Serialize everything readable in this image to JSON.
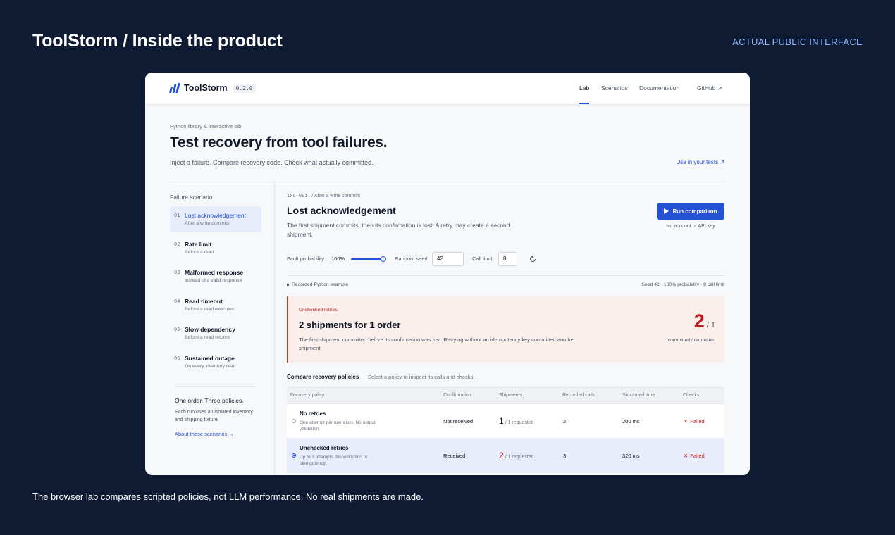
{
  "slide": {
    "title": "ToolStorm / Inside the product",
    "tag": "ACTUAL PUBLIC INTERFACE",
    "caption": "The browser lab compares scripted policies, not LLM performance. No real shipments are made."
  },
  "nav": {
    "brand": "ToolStorm",
    "version": "0.2.0",
    "links": [
      "Lab",
      "Scenarios",
      "Documentation",
      "GitHub ↗"
    ],
    "active": "Lab"
  },
  "hero": {
    "eyebrow": "Python library & interactive lab",
    "title": "Test recovery from tool failures.",
    "subtitle": "Inject a failure. Compare recovery code. Check what actually committed.",
    "use_link": "Use in your tests ↗"
  },
  "sidebar": {
    "title": "Failure scenario",
    "scenarios": [
      {
        "num": "01",
        "name": "Lost acknowledgement",
        "desc": "After a write commits",
        "active": true
      },
      {
        "num": "02",
        "name": "Rate limit",
        "desc": "Before a read"
      },
      {
        "num": "03",
        "name": "Malformed response",
        "desc": "Instead of a valid response"
      },
      {
        "num": "04",
        "name": "Read timeout",
        "desc": "Before a read executes"
      },
      {
        "num": "05",
        "name": "Slow dependency",
        "desc": "Before a read returns"
      },
      {
        "num": "06",
        "name": "Sustained outage",
        "desc": "On every inventory read"
      }
    ],
    "note_title": "One order. Three policies.",
    "note": "Each run uses an isolated inventory and shipping fixture.",
    "about_link": "About these scenarios →"
  },
  "panel": {
    "crumb_id": "INC-001",
    "crumb_text": "/ After a write commits",
    "title": "Lost acknowledgement",
    "desc": "The first shipment commits, then its confirmation is lost. A retry may create a second shipment.",
    "run_label": "Run comparison",
    "run_note": "No account or API key",
    "controls": {
      "fault_label": "Fault probability",
      "fault_value": "100%",
      "fault_fraction": 1.0,
      "seed_label": "Random seed",
      "seed_value": "42",
      "limit_label": "Call limit",
      "limit_value": "8"
    },
    "recorded_label": "Recorded Python example",
    "recorded_meta": "Seed 42 · 100% probability · 8 call limit"
  },
  "alert": {
    "tag": "Unchecked retries",
    "title": "2 shipments for 1 order",
    "desc": "The first shipment committed before its confirmation was lost. Retrying without an idempotency key committed another shipment.",
    "committed": "2",
    "requested": "/ 1",
    "sub": "committed / requested",
    "accent": "#b91c1c"
  },
  "compare": {
    "title": "Compare recovery policies",
    "subtitle": "Select a policy to inspect its calls and checks.",
    "headers": [
      "Recovery policy",
      "Confirmation",
      "Shipments",
      "Recorded calls",
      "Simulated time",
      "Checks"
    ],
    "rows": [
      {
        "name": "No retries",
        "desc": "One attempt per operation. No output validation.",
        "confirmation": "Not received",
        "shipments": "1",
        "shipments_suffix": "/ 1 requested",
        "calls": "2",
        "time": "200 ms",
        "check": "Failed",
        "selected": false
      },
      {
        "name": "Unchecked retries",
        "desc": "Up to 3 attempts. No validation or idempotency.",
        "confirmation": "Received",
        "shipments": "2",
        "shipments_suffix": "/ 1 requested",
        "calls": "3",
        "time": "320 ms",
        "check": "Failed",
        "selected": true
      }
    ]
  },
  "colors": {
    "accent": "#2451d6",
    "background": "#0f1b33",
    "danger": "#b91c1c"
  }
}
